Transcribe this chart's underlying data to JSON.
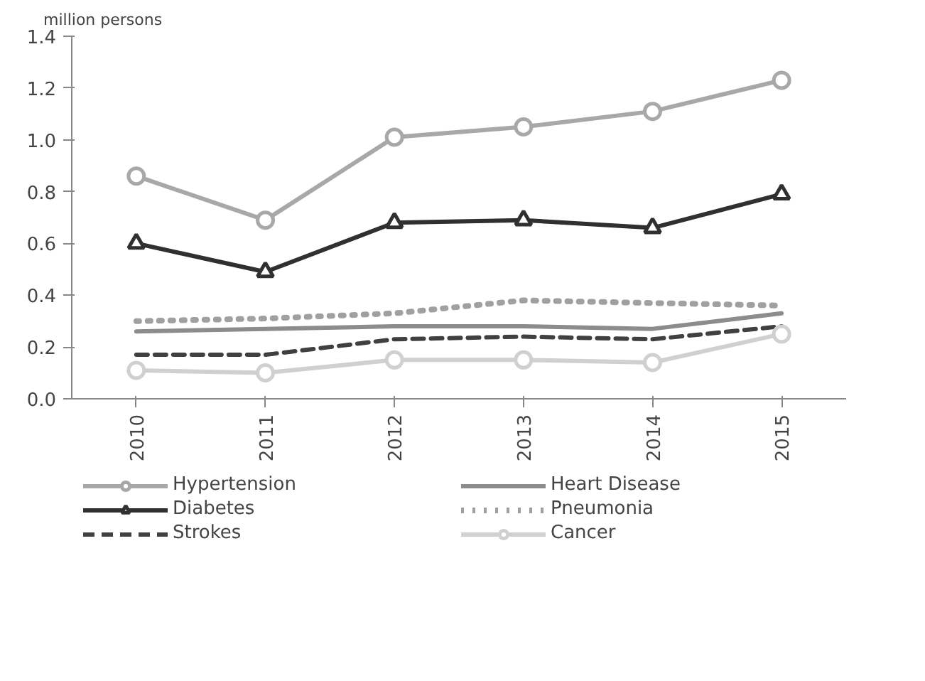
{
  "chart_data": {
    "type": "line",
    "ylabel": "million persons",
    "categories": [
      "2010",
      "2011",
      "2012",
      "2013",
      "2014",
      "2015"
    ],
    "ylim": [
      0,
      1.4
    ],
    "yticks": [
      {
        "value": 0,
        "label": "0.0"
      },
      0.2,
      0.4,
      0.6,
      0.8,
      {
        "value": 1,
        "label": "1.0"
      },
      1.2,
      1.4
    ],
    "grid": false,
    "legend": "bottom",
    "series": [
      {
        "name": "Hypertension",
        "color": "#a8a8a8",
        "marker": "circle",
        "line_style": "solid",
        "values": [
          0.86,
          0.69,
          1.01,
          1.05,
          1.11,
          1.23
        ]
      },
      {
        "name": "Diabetes",
        "color": "#303030",
        "marker": "triangle",
        "line_style": "solid",
        "values": [
          0.6,
          0.49,
          0.68,
          0.69,
          0.66,
          0.79
        ]
      },
      {
        "name": "Strokes",
        "color": "#404040",
        "marker": "none",
        "line_style": "dashed",
        "values": [
          0.17,
          0.17,
          0.23,
          0.24,
          0.23,
          0.28
        ]
      },
      {
        "name": "Heart Disease",
        "color": "#8c8c8c",
        "marker": "none",
        "line_style": "solid",
        "values": [
          0.26,
          0.27,
          0.28,
          0.28,
          0.27,
          0.33
        ]
      },
      {
        "name": "Pneumonia",
        "color": "#a0a0a0",
        "marker": "none",
        "line_style": "dotted",
        "values": [
          0.3,
          0.31,
          0.33,
          0.38,
          0.37,
          0.36
        ]
      },
      {
        "name": "Cancer",
        "color": "#d0d0d0",
        "marker": "circle",
        "line_style": "solid",
        "values": [
          0.11,
          0.1,
          0.15,
          0.15,
          0.14,
          0.25
        ]
      }
    ]
  }
}
